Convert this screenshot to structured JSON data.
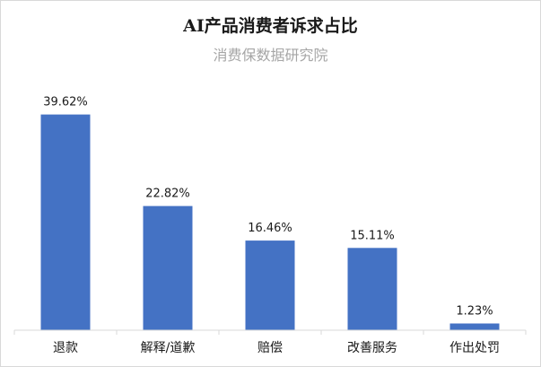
{
  "chart_data": {
    "type": "bar",
    "title": "AI产品消费者诉求占比",
    "subtitle": "消费保数据研究院",
    "categories": [
      "退款",
      "解释/道歉",
      "赔偿",
      "改善服务",
      "作出处罚"
    ],
    "values": [
      39.62,
      22.82,
      16.46,
      15.11,
      1.23
    ],
    "data_labels": [
      "39.62%",
      "22.82%",
      "16.46%",
      "15.11%",
      "1.23%"
    ],
    "xlabel": "",
    "ylabel": "",
    "ylim": [
      0,
      45
    ],
    "grid": false,
    "legend": "none",
    "colors": {
      "bar": "#4472C4",
      "axis": "#d9d9d9",
      "text": "#1a1a1a",
      "subtitle": "#a6a6a6"
    }
  }
}
